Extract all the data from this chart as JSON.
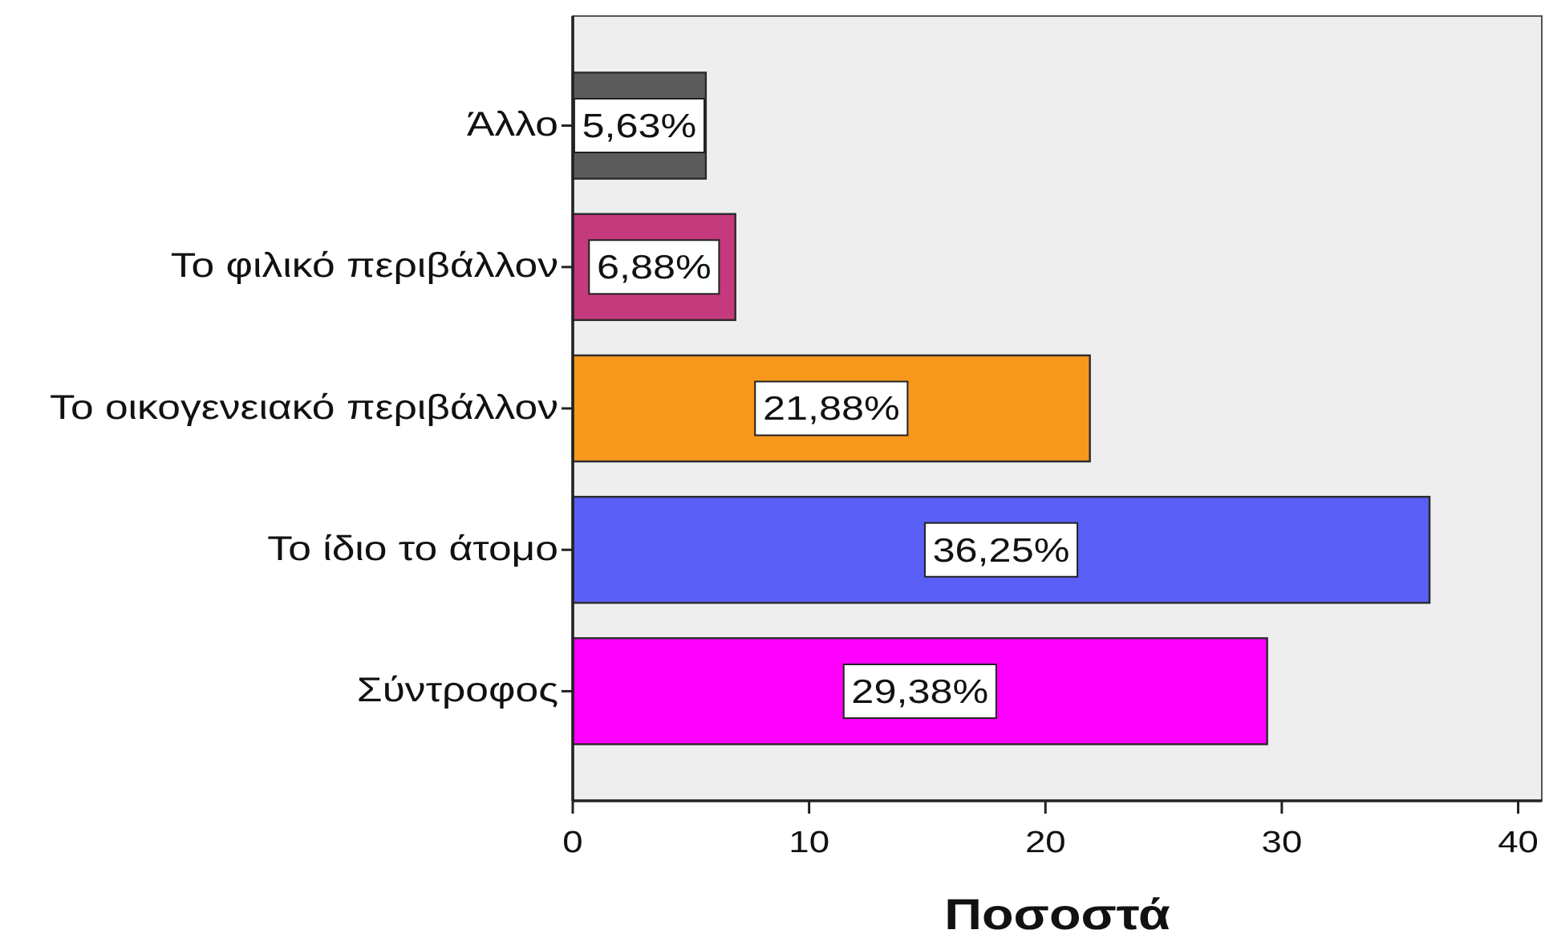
{
  "chart_data": {
    "type": "bar",
    "orientation": "horizontal",
    "categories": [
      "Άλλο",
      "Το φιλικό περιβάλλον",
      "Το οικογενειακό περιβάλλον",
      "Το ίδιο το άτομο",
      "Σύντροφος"
    ],
    "values": [
      5.63,
      6.88,
      21.88,
      36.25,
      29.38
    ],
    "colors": [
      "#5c5c5c",
      "#c43a7c",
      "#f7981d",
      "#5a5ff5",
      "#ff00ff"
    ],
    "value_labels": [
      "5,63%",
      "6,88%",
      "21,88%",
      "36,25%",
      "29,38%"
    ],
    "xlabel": "Ποσοστά",
    "xlim": [
      0,
      41
    ],
    "xticks": [
      0,
      10,
      20,
      30,
      40
    ]
  }
}
